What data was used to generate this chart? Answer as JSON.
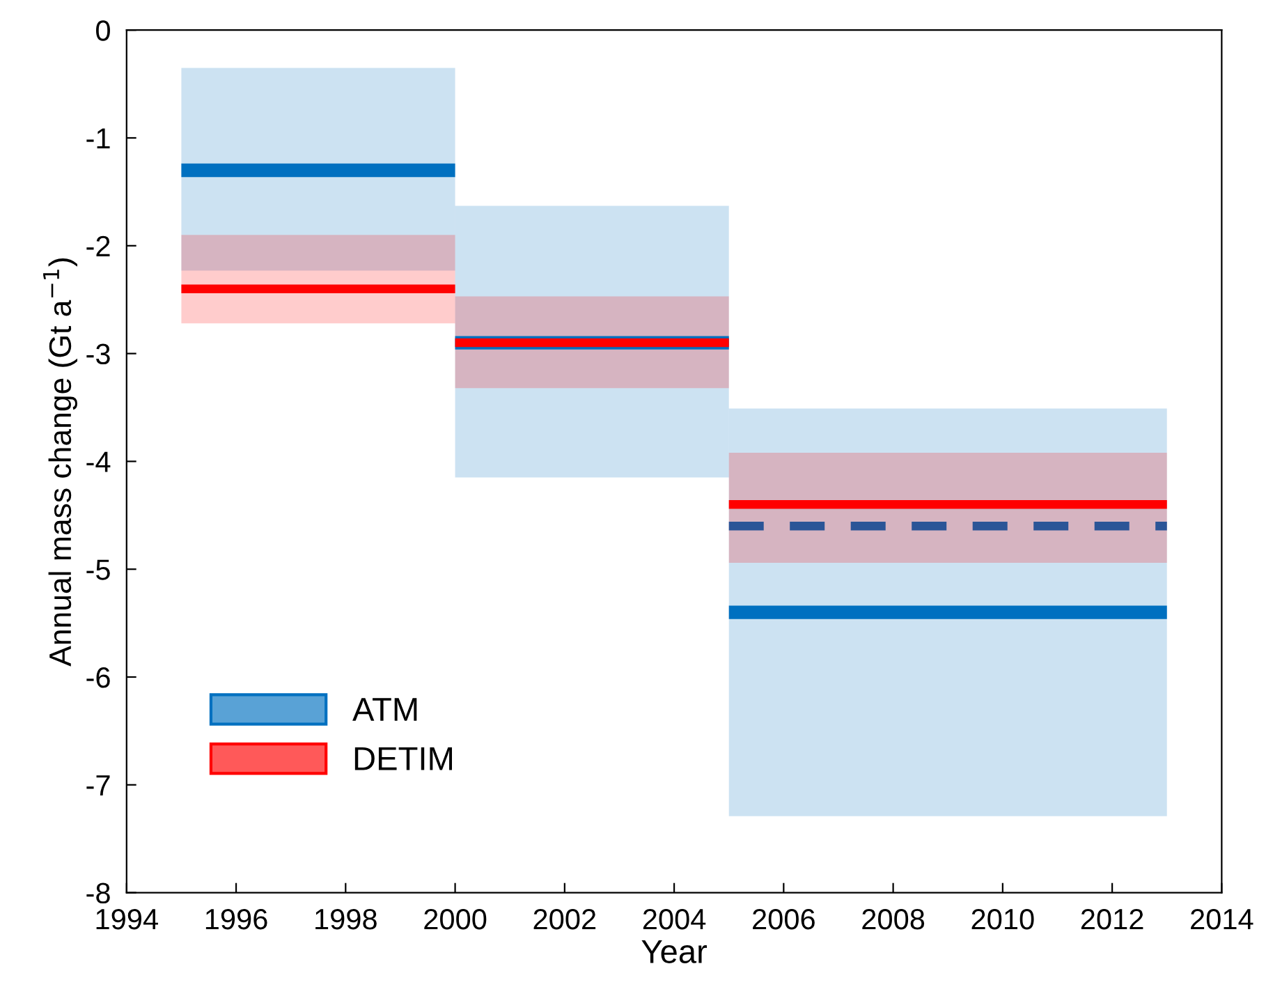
{
  "chart_data": {
    "type": "line",
    "xlabel": "Year",
    "ylabel": "Annual mass change (Gt a$^{−1}$)",
    "xlim": [
      1994,
      2014
    ],
    "xticks": [
      1994,
      1996,
      1998,
      2000,
      2002,
      2004,
      2006,
      2008,
      2010,
      2012,
      2014
    ],
    "ylim": [
      -8,
      0
    ],
    "yticks": [
      -8,
      -7,
      -6,
      -5,
      -4,
      -3,
      -2,
      -1,
      0
    ],
    "grid": false,
    "legend": "bottom left",
    "marker": "none",
    "series": [
      {
        "name": "ATM",
        "color": "#0070c0",
        "line_style": "solid",
        "x": [
          1995,
          2000
        ],
        "values": [
          -1.3,
          -1.3
        ],
        "upper": [
          -0.35,
          -0.35
        ],
        "lower": [
          -2.23,
          -2.23
        ]
      },
      {
        "color": "#0070c0",
        "line_style": "solid",
        "x": [
          2000,
          2005
        ],
        "values": [
          -2.9,
          -2.9
        ],
        "upper": [
          -1.63,
          -1.63
        ],
        "lower": [
          -4.15,
          -4.15
        ]
      },
      {
        "color": "#0070c0",
        "line_style": "solid",
        "x": [
          2005,
          2013
        ],
        "values": [
          -5.4,
          -5.4
        ],
        "upper": [
          -3.51,
          -3.51
        ],
        "lower": [
          -7.29,
          -7.29
        ]
      },
      {
        "name": "DETIM",
        "color": "#ff0000",
        "line_style": "solid",
        "x": [
          1995,
          2000
        ],
        "values": [
          -2.4,
          -2.4
        ],
        "upper": [
          -1.9,
          -1.9
        ],
        "lower": [
          -2.72,
          -2.72
        ]
      },
      {
        "color": "#ff0000",
        "line_style": "solid",
        "x": [
          2000,
          2005
        ],
        "values": [
          -2.9,
          -2.9
        ],
        "upper": [
          -2.47,
          -2.47
        ],
        "lower": [
          -3.32,
          -3.32
        ]
      },
      {
        "color": "#ff0000",
        "line_style": "solid",
        "x": [
          2005,
          2013
        ],
        "values": [
          -4.4,
          -4.4
        ],
        "upper": [
          -3.92,
          -3.92
        ],
        "lower": [
          -4.94,
          -4.94
        ]
      },
      {
        "color": "#2b5597",
        "line_style": "dashed",
        "x": [
          2005,
          2013
        ],
        "values": [
          -4.6,
          -4.6
        ]
      }
    ]
  }
}
